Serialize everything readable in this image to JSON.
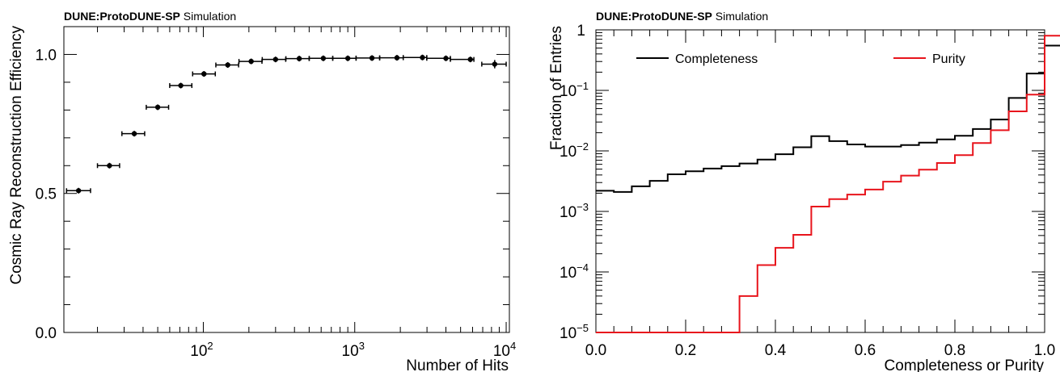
{
  "chart_data": [
    {
      "type": "scatter",
      "header_bold": "DUNE:ProtoDUNE-SP",
      "header_normal": "Simulation",
      "xlabel": "Number of Hits",
      "ylabel": "Cosmic Ray Reconstruction Efficiency",
      "xscale": "log",
      "xlim": [
        12,
        10500
      ],
      "ylim": [
        0.0,
        1.1
      ],
      "x_ticks": [
        {
          "value": 100,
          "base": "10",
          "exp": "2"
        },
        {
          "value": 1000,
          "base": "10",
          "exp": "3"
        },
        {
          "value": 10000,
          "base": "10",
          "exp": "4"
        }
      ],
      "y_ticks": [
        {
          "value": 0.0,
          "label": "0.0"
        },
        {
          "value": 0.5,
          "label": "0.5"
        },
        {
          "value": 1.0,
          "label": "1.0"
        }
      ],
      "grid": false,
      "series": [
        {
          "marker": "circle",
          "color": "#000000",
          "points": [
            {
              "x": 15,
              "xlo": 12.5,
              "xhi": 18,
              "y": 0.51,
              "yerr": 0.004
            },
            {
              "x": 24,
              "xlo": 20,
              "xhi": 28,
              "y": 0.6,
              "yerr": 0.004
            },
            {
              "x": 35,
              "xlo": 29,
              "xhi": 41,
              "y": 0.715,
              "yerr": 0.004
            },
            {
              "x": 50,
              "xlo": 42,
              "xhi": 59,
              "y": 0.81,
              "yerr": 0.004
            },
            {
              "x": 71,
              "xlo": 60,
              "xhi": 84,
              "y": 0.888,
              "yerr": 0.003
            },
            {
              "x": 101,
              "xlo": 85,
              "xhi": 120,
              "y": 0.93,
              "yerr": 0.003
            },
            {
              "x": 145,
              "xlo": 121,
              "xhi": 171,
              "y": 0.962,
              "yerr": 0.003
            },
            {
              "x": 207,
              "xlo": 172,
              "xhi": 244,
              "y": 0.975,
              "yerr": 0.002
            },
            {
              "x": 300,
              "xlo": 245,
              "xhi": 350,
              "y": 0.982,
              "yerr": 0.002
            },
            {
              "x": 430,
              "xlo": 351,
              "xhi": 500,
              "y": 0.985,
              "yerr": 0.002
            },
            {
              "x": 620,
              "xlo": 501,
              "xhi": 715,
              "y": 0.986,
              "yerr": 0.002
            },
            {
              "x": 900,
              "xlo": 716,
              "xhi": 1020,
              "y": 0.986,
              "yerr": 0.002
            },
            {
              "x": 1300,
              "xlo": 1021,
              "xhi": 1460,
              "y": 0.987,
              "yerr": 0.002
            },
            {
              "x": 1900,
              "xlo": 1461,
              "xhi": 2090,
              "y": 0.988,
              "yerr": 0.002
            },
            {
              "x": 2800,
              "xlo": 2091,
              "xhi": 2990,
              "y": 0.989,
              "yerr": 0.002
            },
            {
              "x": 4000,
              "xlo": 2991,
              "xhi": 4280,
              "y": 0.986,
              "yerr": 0.002
            },
            {
              "x": 5800,
              "xlo": 4281,
              "xhi": 6120,
              "y": 0.982,
              "yerr": 0.004
            },
            {
              "x": 8400,
              "xlo": 6900,
              "xhi": 10000,
              "y": 0.965,
              "yerr": 0.015
            }
          ]
        }
      ]
    },
    {
      "type": "step",
      "header_bold": "DUNE:ProtoDUNE-SP",
      "header_normal": "Simulation",
      "xlabel": "Completeness or Purity",
      "ylabel": "Fraction of Entries",
      "yscale": "log",
      "xlim": [
        0.0,
        1.0
      ],
      "ylim": [
        1e-05,
        1.0
      ],
      "x_ticks": [
        {
          "value": 0.0,
          "label": "0.0"
        },
        {
          "value": 0.2,
          "label": "0.2"
        },
        {
          "value": 0.4,
          "label": "0.4"
        },
        {
          "value": 0.6,
          "label": "0.6"
        },
        {
          "value": 0.8,
          "label": "0.8"
        },
        {
          "value": 1.0,
          "label": "1.0"
        }
      ],
      "y_ticks": [
        {
          "value": 1,
          "label": "1"
        },
        {
          "value": 0.1,
          "base": "10",
          "exp": "−1"
        },
        {
          "value": 0.01,
          "base": "10",
          "exp": "−2"
        },
        {
          "value": 0.001,
          "base": "10",
          "exp": "−3"
        },
        {
          "value": 0.0001,
          "base": "10",
          "exp": "−4"
        },
        {
          "value": 1e-05,
          "base": "10",
          "exp": "−5"
        }
      ],
      "grid": false,
      "legend_position": "top",
      "bin_width": 0.04,
      "series": [
        {
          "name": "Completeness",
          "color": "#000000",
          "values": [
            0.0022,
            0.0021,
            0.0026,
            0.0032,
            0.0041,
            0.0046,
            0.0051,
            0.0056,
            0.0062,
            0.0072,
            0.0088,
            0.0115,
            0.0175,
            0.0145,
            0.0128,
            0.0118,
            0.0118,
            0.0125,
            0.0137,
            0.0155,
            0.0178,
            0.023,
            0.033,
            0.075,
            0.19,
            0.55
          ]
        },
        {
          "name": "Purity",
          "color": "#e8141c",
          "values": [
            1e-05,
            1e-05,
            1e-05,
            1e-05,
            1e-05,
            1e-05,
            1e-05,
            1e-05,
            4e-05,
            0.00013,
            0.00025,
            0.00041,
            0.0012,
            0.0016,
            0.0019,
            0.0023,
            0.0031,
            0.0039,
            0.0049,
            0.0063,
            0.0085,
            0.0135,
            0.022,
            0.045,
            0.085,
            0.8
          ]
        }
      ]
    }
  ]
}
